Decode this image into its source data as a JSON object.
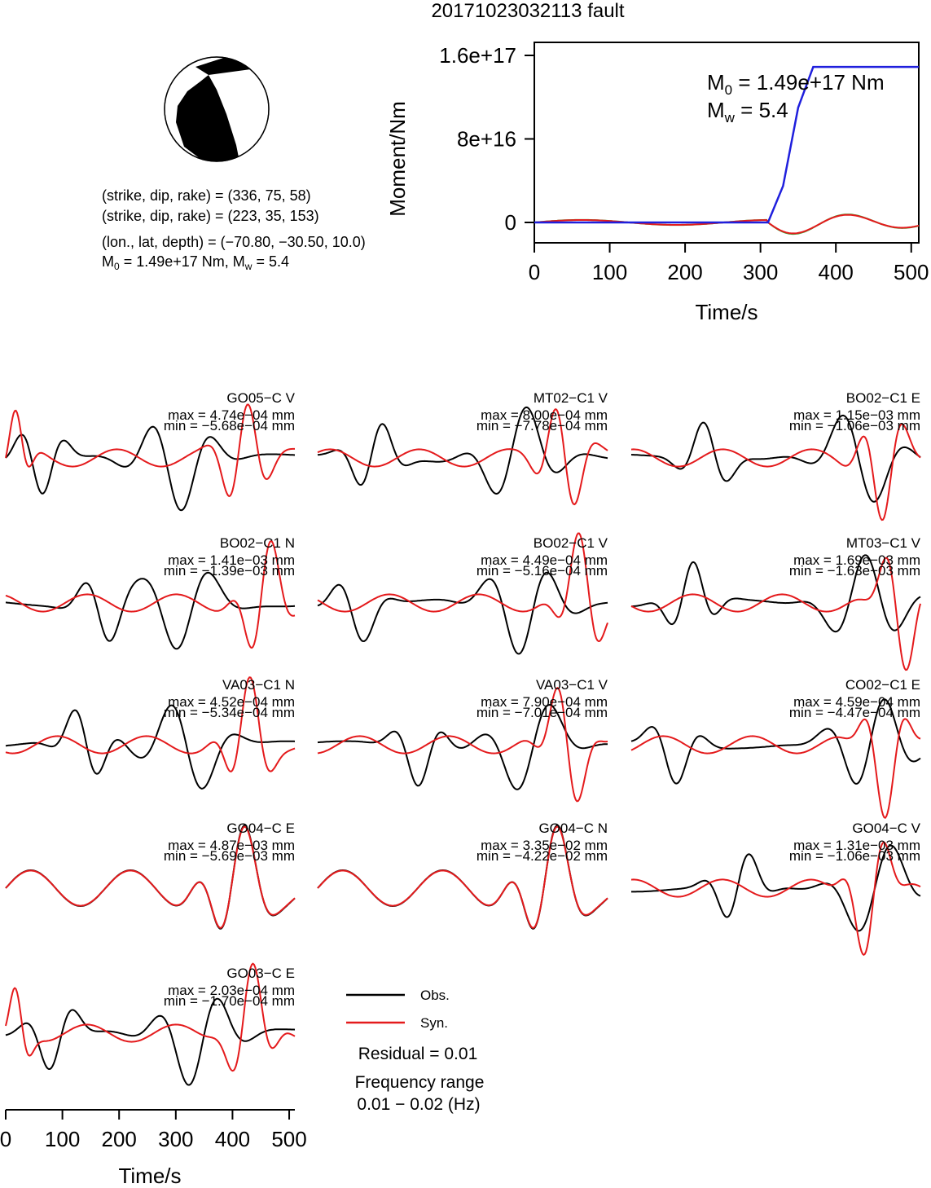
{
  "title": "20171023032113 fault",
  "beachball": {
    "planes": [
      "(strike, dip, rake) = (336, 75, 58)",
      "(strike, dip, rake) = (223, 35, 153)"
    ],
    "location": "(lon., lat, depth) = (−70.80, −30.50, 10.0)",
    "moment_prefix": "M",
    "moment_text": " = 1.49e+17 Nm, M",
    "mw_text": " = 5.4",
    "sub0": "0",
    "subw": "w"
  },
  "moment_panel": {
    "ylabel": "Moment/Nm",
    "xlabel": "Time/s",
    "m0_label": "M",
    "m0_sub": "0",
    "m0_value": " = 1.49e+17 Nm",
    "mw_label": "M",
    "mw_sub": "w",
    "mw_value": " = 5.4",
    "yticks": [
      "0",
      "8e+16",
      "1.6e+17"
    ],
    "xticks": [
      "0",
      "100",
      "200",
      "300",
      "400",
      "500"
    ]
  },
  "bottom_axis": {
    "xlabel": "Time/s",
    "xticks": [
      "0",
      "100",
      "200",
      "300",
      "400",
      "500"
    ]
  },
  "legend": {
    "obs": "Obs.",
    "syn": "Syn.",
    "residual": "Residual = 0.01",
    "freq_title": "Frequency range",
    "freq_value": "0.01 − 0.02 (Hz)"
  },
  "colors": {
    "observed": "#000000",
    "synthetic": "#e41a1c",
    "moment": "#1f1fdd",
    "stf_green": "#33aa33"
  },
  "chart_data": [
    {
      "type": "line",
      "title": "",
      "xlabel": "Time/s",
      "ylabel": "Moment/Nm",
      "xlim": [
        0,
        510
      ],
      "ylim": [
        -1.5e+16,
        1.6e+17
      ],
      "series": [
        {
          "values": [
            [
              0,
              0
            ],
            [
              310,
              0
            ],
            [
              330,
              3.5e+16
            ],
            [
              350,
              1.1e+17
            ],
            [
              370,
              1.49e+17
            ],
            [
              510,
              1.49e+17
            ]
          ]
        }
      ]
    },
    {
      "type": "line",
      "traces": [
        {
          "station": "GO05−C V",
          "max": "max = 4.74e−04 mm",
          "min": "min = −5.68e−04 mm"
        },
        {
          "station": "MT02−C1 V",
          "max": "max = 8.00e−04 mm",
          "min": "min = −7.78e−04 mm"
        },
        {
          "station": "BO02−C1 E",
          "max": "max = 1.15e−03 mm",
          "min": "min = −1.06e−03 mm"
        },
        {
          "station": "BO02−C1 N",
          "max": "max = 1.41e−03 mm",
          "min": "min = −1.39e−03 mm"
        },
        {
          "station": "BO02−C1 V",
          "max": "max = 4.49e−04 mm",
          "min": "min = −5.16e−04 mm"
        },
        {
          "station": "MT03−C1 V",
          "max": "max = 1.69e−03 mm",
          "min": "min = −1.63e−03 mm"
        },
        {
          "station": "VA03−C1 N",
          "max": "max = 4.52e−04 mm",
          "min": "min = −5.34e−04 mm"
        },
        {
          "station": "VA03−C1 V",
          "max": "max = 7.90e−04 mm",
          "min": "min = −7.01e−04 mm"
        },
        {
          "station": "CO02−C1 E",
          "max": "max = 4.59e−04 mm",
          "min": "min = −4.47e−04 mm"
        },
        {
          "station": "GO04−C E",
          "max": "max = 4.87e−03 mm",
          "min": "min = −5.69e−03 mm"
        },
        {
          "station": "GO04−C N",
          "max": "max = 3.35e−02 mm",
          "min": "min = −4.22e−02 mm"
        },
        {
          "station": "GO04−C V",
          "max": "max = 1.31e−03 mm",
          "min": "min = −1.06e−03 mm"
        },
        {
          "station": "GO03−C E",
          "max": "max = 2.03e−04 mm",
          "min": "min = −1.70e−04 mm"
        }
      ],
      "xlim": [
        0,
        510
      ]
    }
  ]
}
